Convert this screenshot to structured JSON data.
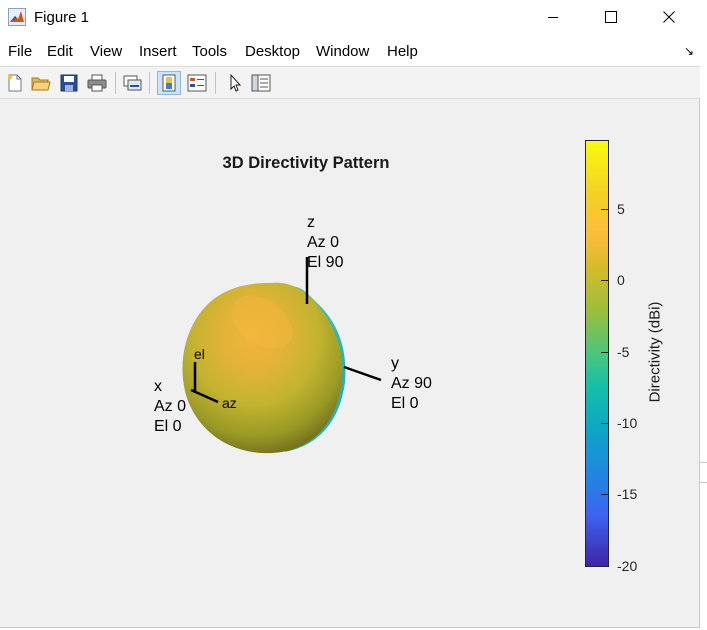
{
  "window": {
    "title": "Figure 1",
    "app_icon": "matlab-icon",
    "controls": [
      "minimize-icon",
      "maximize-icon",
      "close-icon"
    ]
  },
  "menu": {
    "items": [
      "File",
      "Edit",
      "View",
      "Insert",
      "Tools",
      "Desktop",
      "Window",
      "Help"
    ]
  },
  "toolbar": {
    "tools": [
      {
        "icon": "new-figure-icon"
      },
      {
        "icon": "open-file-icon"
      },
      {
        "icon": "save-icon"
      },
      {
        "icon": "print-icon"
      },
      {
        "icon": "link-plot-icon"
      },
      {
        "icon": "colorbar-toggle-icon",
        "selected": true
      },
      {
        "icon": "legend-toggle-icon"
      },
      {
        "icon": "edit-plot-arrow-icon"
      },
      {
        "icon": "property-inspector-icon"
      }
    ]
  },
  "plot": {
    "title": "3D Directivity Pattern",
    "axes": {
      "z": {
        "name": "z",
        "az": "Az 0",
        "el": "El 90"
      },
      "y": {
        "name": "y",
        "az": "Az 90",
        "el": "El 0"
      },
      "x": {
        "name": "x",
        "az": "Az 0",
        "el": "El 0"
      }
    },
    "local_axes": {
      "el": "el",
      "az": "az"
    }
  },
  "colorbar": {
    "label": "Directivity (dBi)",
    "range": [
      -20,
      9.6
    ],
    "ticks": [
      "5",
      "0",
      "-5",
      "-10",
      "-15",
      "-20"
    ],
    "colormap": "parula"
  },
  "colors": {
    "window_bg": "#f0f0f0",
    "toolbar_selected": "#cce4f7"
  }
}
